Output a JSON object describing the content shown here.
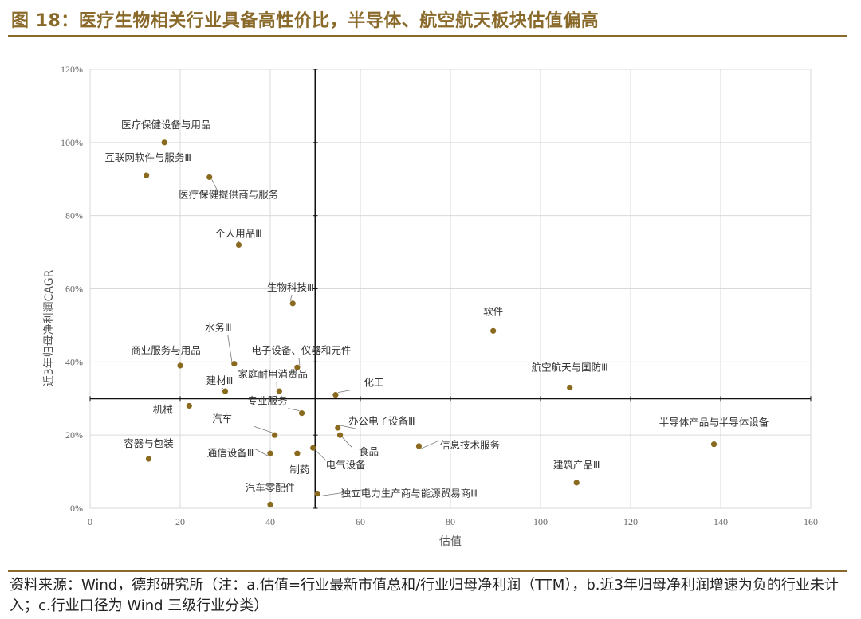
{
  "title": "图 18：医疗生物相关行业具备高性价比，半导体、航空航天板块估值偏高",
  "source_note": "资料来源：Wind，德邦研究所（注：a.估值=行业最新市值总和/行业归母净利润（TTM），b.近3年归母净利润增速为负的行业未计入；c.行业口径为 Wind 三级行业分类）",
  "chart_data": {
    "type": "scatter",
    "title": "",
    "xlabel": "估值",
    "ylabel": "近3年归母净利润CAGR",
    "xlim": [
      0,
      160
    ],
    "ylim": [
      0,
      1.2
    ],
    "xticks": [
      0,
      20,
      40,
      60,
      80,
      100,
      120,
      140,
      160
    ],
    "yticks": [
      0,
      0.2,
      0.4,
      0.6,
      0.8,
      1.0,
      1.2
    ],
    "ytick_labels": [
      "0%",
      "20%",
      "40%",
      "60%",
      "80%",
      "100%",
      "120%"
    ],
    "grid": true,
    "reference_lines": {
      "x": 50,
      "y": 0.3
    },
    "point_color": "#8a6a1f",
    "points": [
      {
        "name": "医疗保健设备与用品",
        "x": 16.5,
        "y": 1.0
      },
      {
        "name": "互联网软件与服务Ⅲ",
        "x": 12.5,
        "y": 0.91
      },
      {
        "name": "医疗保健提供商与服务",
        "x": 26.5,
        "y": 0.905
      },
      {
        "name": "个人用品Ⅲ",
        "x": 33,
        "y": 0.72
      },
      {
        "name": "生物科技Ⅲ",
        "x": 45,
        "y": 0.56
      },
      {
        "name": "软件",
        "x": 89.5,
        "y": 0.485
      },
      {
        "name": "水务Ⅲ",
        "x": 32,
        "y": 0.395
      },
      {
        "name": "商业服务与用品",
        "x": 20,
        "y": 0.39
      },
      {
        "name": "电子设备、仪器和元件",
        "x": 46,
        "y": 0.385
      },
      {
        "name": "建材Ⅲ",
        "x": 30,
        "y": 0.32
      },
      {
        "name": "家庭耐用消费品",
        "x": 42,
        "y": 0.32
      },
      {
        "name": "化工",
        "x": 54.5,
        "y": 0.31
      },
      {
        "name": "航空航天与国防Ⅲ",
        "x": 106.5,
        "y": 0.33
      },
      {
        "name": "机械",
        "x": 22,
        "y": 0.28
      },
      {
        "name": "专业服务",
        "x": 47,
        "y": 0.26
      },
      {
        "name": "办公电子设备Ⅲ",
        "x": 55,
        "y": 0.22
      },
      {
        "name": "汽车",
        "x": 41,
        "y": 0.2
      },
      {
        "name": "食品",
        "x": 55.5,
        "y": 0.2
      },
      {
        "name": "信息技术服务",
        "x": 73,
        "y": 0.17
      },
      {
        "name": "半导体产品与半导体设备",
        "x": 138.5,
        "y": 0.175
      },
      {
        "name": "电气设备",
        "x": 49.5,
        "y": 0.165
      },
      {
        "name": "容器与包装",
        "x": 13,
        "y": 0.135
      },
      {
        "name": "通信设备Ⅲ",
        "x": 40,
        "y": 0.15
      },
      {
        "name": "制药",
        "x": 46,
        "y": 0.15
      },
      {
        "name": "建筑产品Ⅲ",
        "x": 108,
        "y": 0.07
      },
      {
        "name": "独立电力生产商与能源贸易商Ⅲ",
        "x": 50.5,
        "y": 0.04
      },
      {
        "name": "汽车零配件",
        "x": 40,
        "y": 0.01
      }
    ]
  }
}
